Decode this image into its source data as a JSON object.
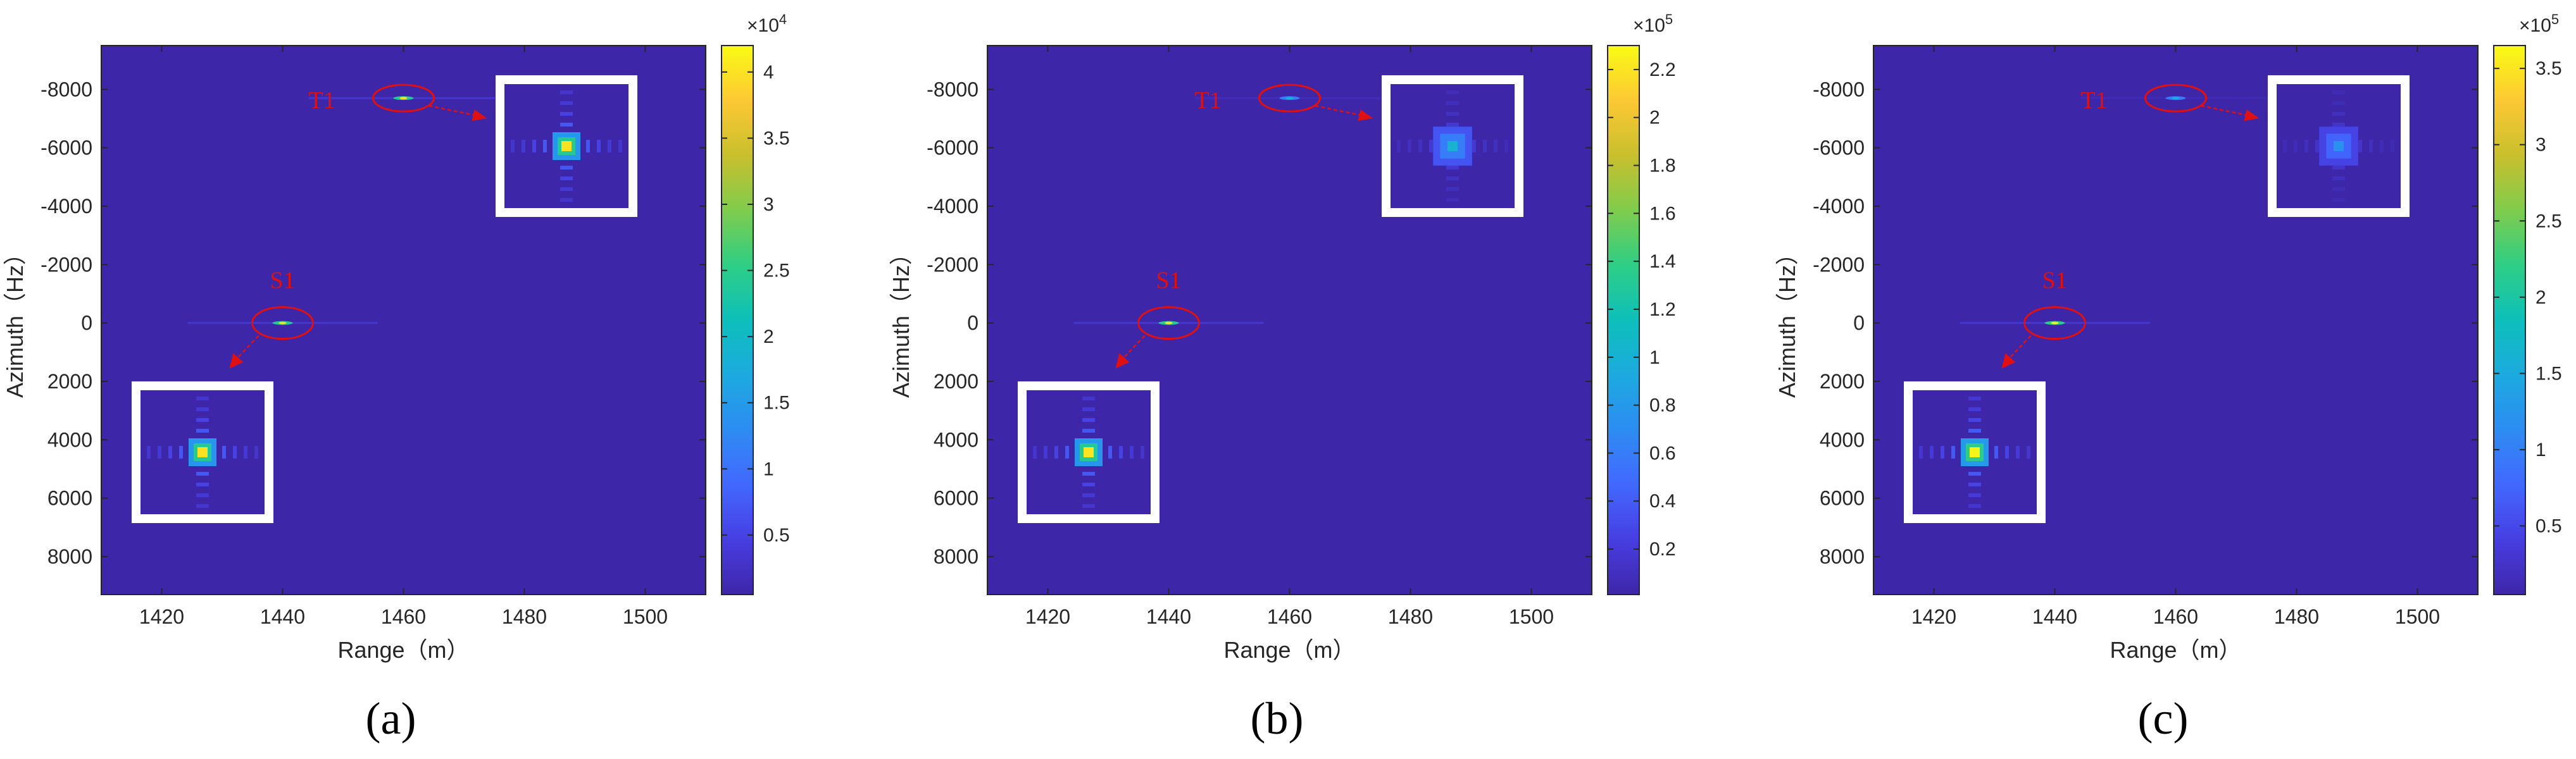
{
  "chart_data": [
    {
      "type": "heatmap",
      "panel_label": "(a)",
      "xlabel": "Range（m）",
      "ylabel": "Azimuth（Hz）",
      "xlim": [
        1410,
        1510
      ],
      "ylim": [
        -9500,
        9300
      ],
      "xticks": [
        "1420",
        "1440",
        "1460",
        "1480",
        "1500"
      ],
      "xtick_values": [
        1420,
        1440,
        1460,
        1480,
        1500
      ],
      "yticks": [
        "-8000",
        "-6000",
        "-4000",
        "-2000",
        "0",
        "2000",
        "4000",
        "6000",
        "8000"
      ],
      "ytick_values": [
        -8000,
        -6000,
        -4000,
        -2000,
        0,
        2000,
        4000,
        6000,
        8000
      ],
      "colorbar": {
        "exponent_base": "×10",
        "exponent_power": "4",
        "ticks": [
          "0.5",
          "1",
          "1.5",
          "2",
          "2.5",
          "3",
          "3.5",
          "4"
        ],
        "tick_values": [
          0.5,
          1,
          1.5,
          2,
          2.5,
          3,
          3.5,
          4
        ],
        "min": 0.05,
        "max": 4.2
      },
      "targets": [
        {
          "label": "T1",
          "range": 1460,
          "azimuth": -7700,
          "peak": 4.0
        },
        {
          "label": "S1",
          "range": 1440,
          "azimuth": 0,
          "peak": 4.0
        }
      ]
    },
    {
      "type": "heatmap",
      "panel_label": "(b)",
      "xlabel": "Range（m）",
      "ylabel": "Azimuth（Hz）",
      "xlim": [
        1410,
        1510
      ],
      "ylim": [
        -9500,
        9300
      ],
      "xticks": [
        "1420",
        "1440",
        "1460",
        "1480",
        "1500"
      ],
      "xtick_values": [
        1420,
        1440,
        1460,
        1480,
        1500
      ],
      "yticks": [
        "-8000",
        "-6000",
        "-4000",
        "-2000",
        "0",
        "2000",
        "4000",
        "6000",
        "8000"
      ],
      "ytick_values": [
        -8000,
        -6000,
        -4000,
        -2000,
        0,
        2000,
        4000,
        6000,
        8000
      ],
      "colorbar": {
        "exponent_base": "×10",
        "exponent_power": "5",
        "ticks": [
          "0.2",
          "0.4",
          "0.6",
          "0.8",
          "1",
          "1.2",
          "1.4",
          "1.6",
          "1.8",
          "2",
          "2.2"
        ],
        "tick_values": [
          0.2,
          0.4,
          0.6,
          0.8,
          1,
          1.2,
          1.4,
          1.6,
          1.8,
          2,
          2.2
        ],
        "min": 0.01,
        "max": 2.3
      },
      "targets": [
        {
          "label": "T1",
          "range": 1460,
          "azimuth": -7700,
          "peak": 1.0
        },
        {
          "label": "S1",
          "range": 1440,
          "azimuth": 0,
          "peak": 2.2
        }
      ]
    },
    {
      "type": "heatmap",
      "panel_label": "(c)",
      "xlabel": "Range（m）",
      "ylabel": "Azimuth（Hz）",
      "xlim": [
        1410,
        1510
      ],
      "ylim": [
        -9500,
        9300
      ],
      "xticks": [
        "1420",
        "1440",
        "1460",
        "1480",
        "1500"
      ],
      "xtick_values": [
        1420,
        1440,
        1460,
        1480,
        1500
      ],
      "yticks": [
        "-8000",
        "-6000",
        "-4000",
        "-2000",
        "0",
        "2000",
        "4000",
        "6000",
        "8000"
      ],
      "ytick_values": [
        -8000,
        -6000,
        -4000,
        -2000,
        0,
        2000,
        4000,
        6000,
        8000
      ],
      "colorbar": {
        "exponent_base": "×10",
        "exponent_power": "5",
        "ticks": [
          "0.5",
          "1",
          "1.5",
          "2",
          "2.5",
          "3",
          "3.5"
        ],
        "tick_values": [
          0.5,
          1,
          1.5,
          2,
          2.5,
          3,
          3.5
        ],
        "min": 0.05,
        "max": 3.65
      },
      "targets": [
        {
          "label": "T1",
          "range": 1460,
          "azimuth": -7700,
          "peak": 1.2
        },
        {
          "label": "S1",
          "range": 1440,
          "azimuth": 0,
          "peak": 3.6
        }
      ]
    }
  ],
  "colors": {
    "background_field": "#3a2b9a",
    "annotation": "#e01010",
    "inset_border": "#ffffff"
  }
}
